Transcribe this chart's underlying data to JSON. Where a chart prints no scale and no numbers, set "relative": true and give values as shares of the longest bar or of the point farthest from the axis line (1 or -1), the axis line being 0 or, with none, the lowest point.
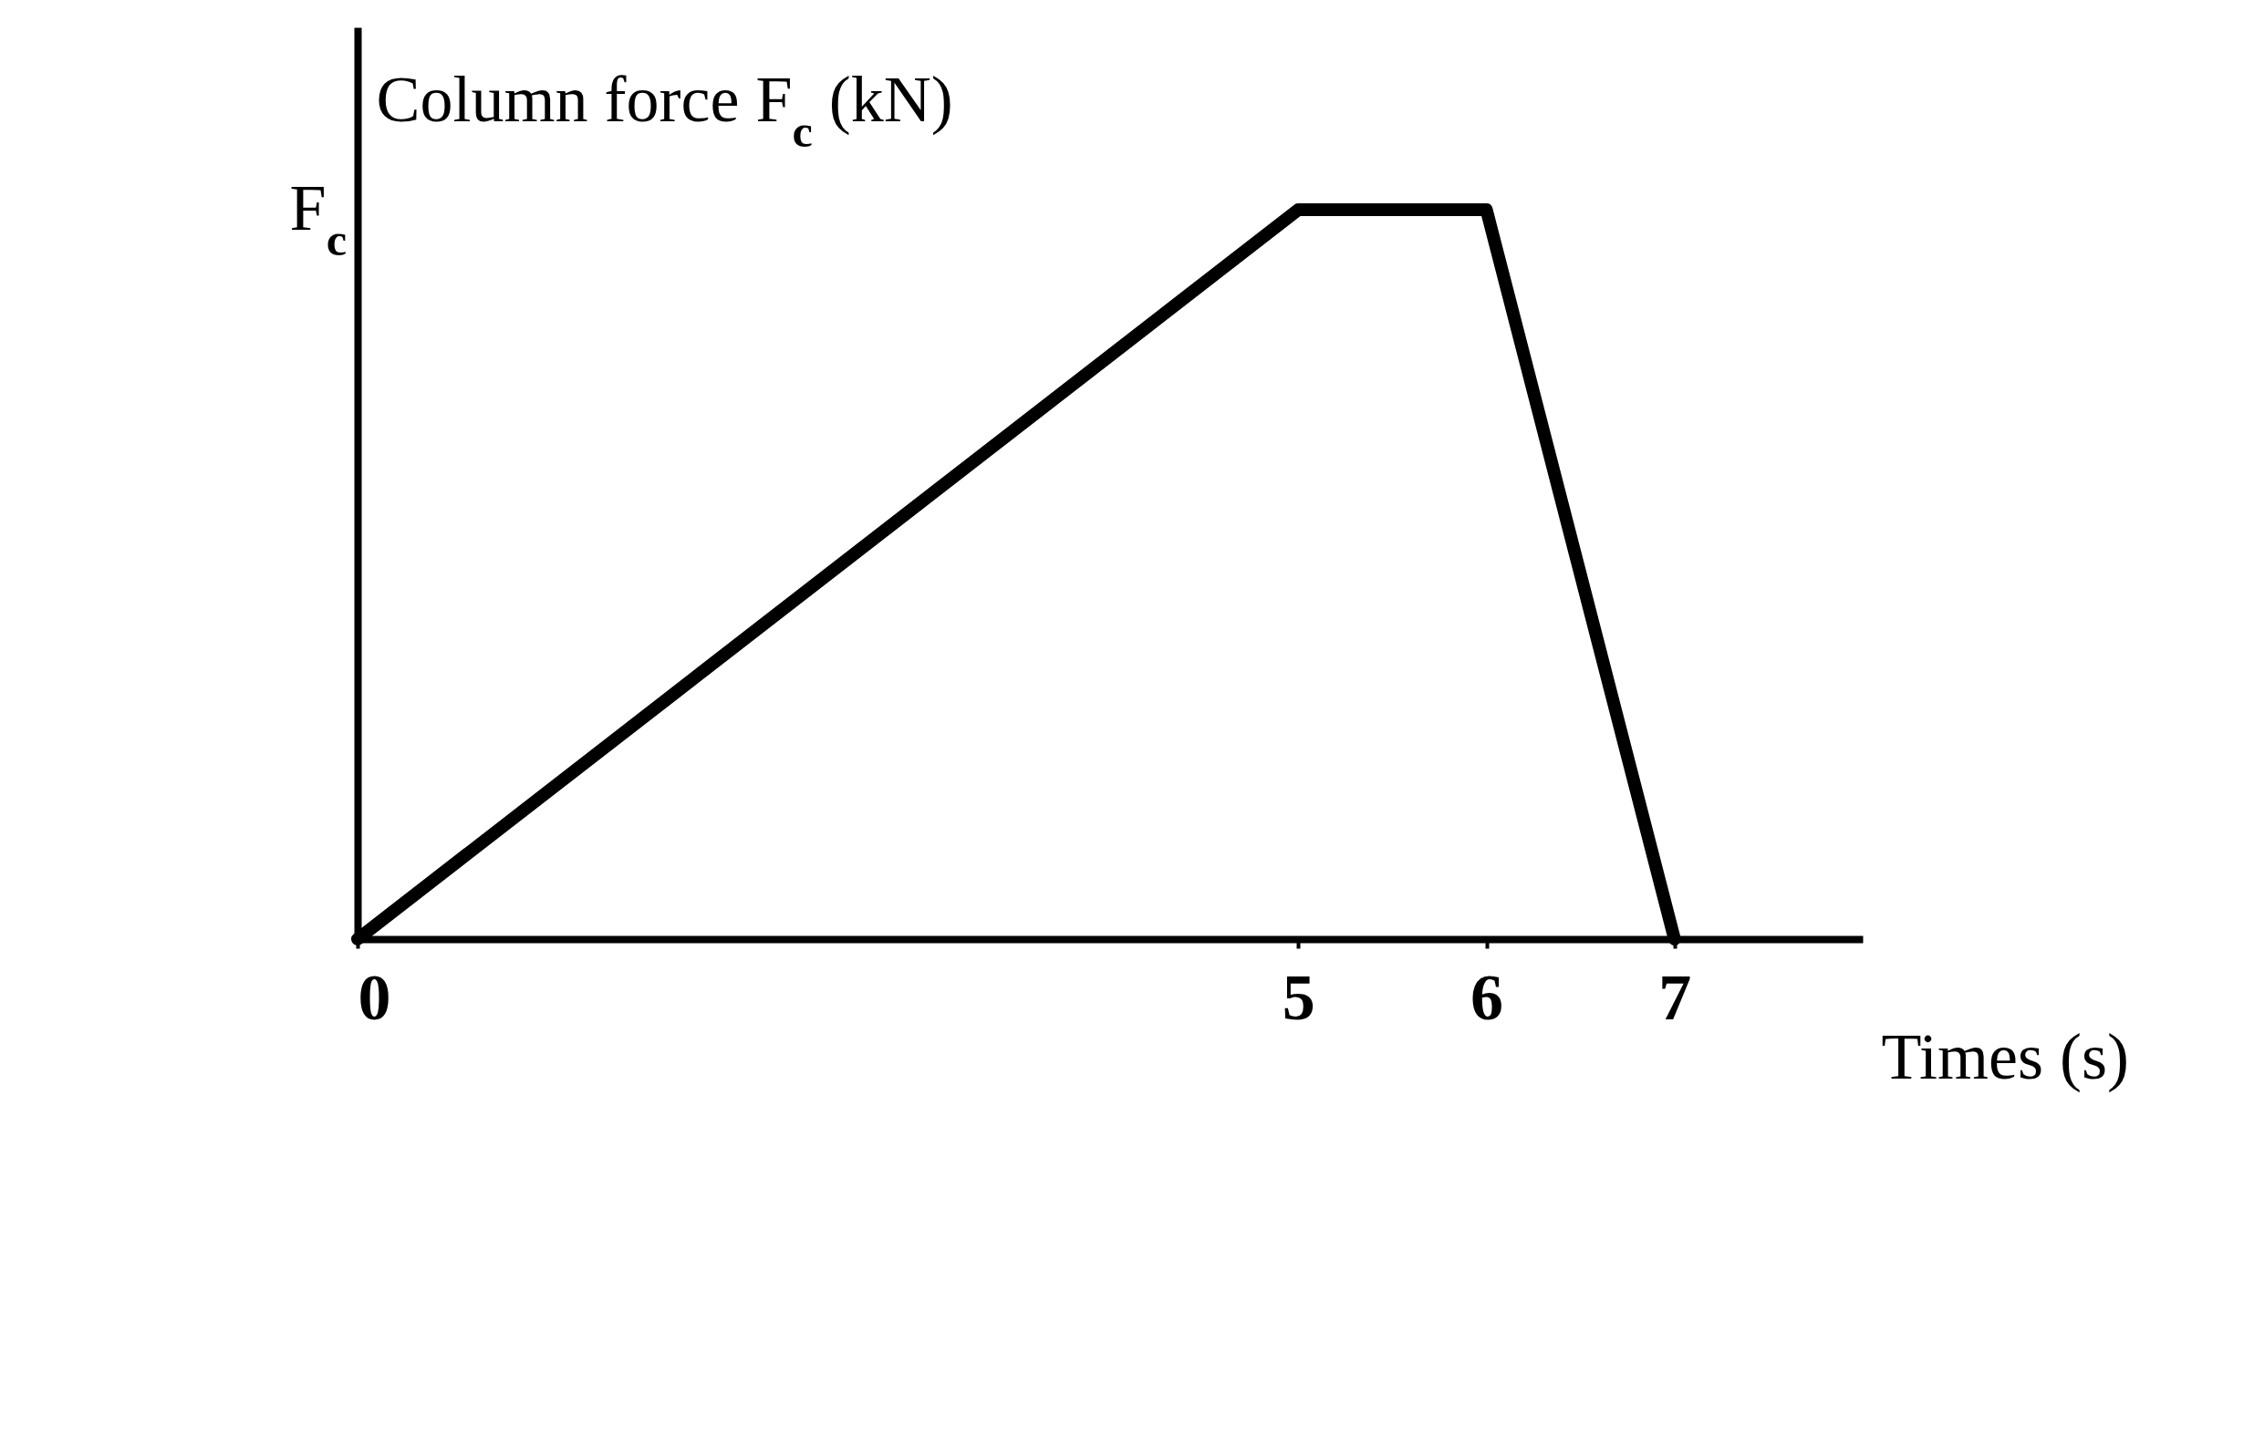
{
  "chart_data": {
    "type": "line",
    "relative": true,
    "xlabel": "Times (s)",
    "ylabel": "Column force F$_{c}$ (kN)",
    "x": [
      0,
      5,
      6,
      7
    ],
    "series": [
      {
        "color": "#000000",
        "values": [
          0,
          1,
          1,
          0
        ]
      }
    ],
    "xlim": [
      0,
      8
    ],
    "xticks": [
      0,
      5,
      6,
      7
    ],
    "grid": false,
    "marker": "none",
    "line_style": "solid",
    "annotations": [
      "F$_{c}$"
    ]
  }
}
